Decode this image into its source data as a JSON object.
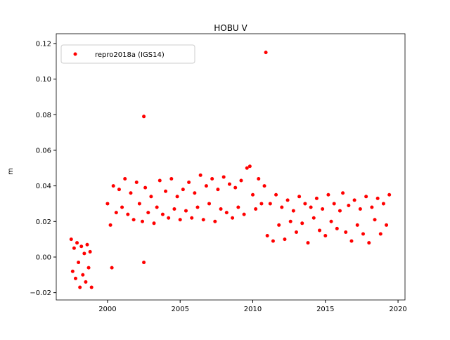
{
  "chart_data": {
    "type": "scatter",
    "title": "HOBU V",
    "y_label": "m",
    "legend": "upper left",
    "xlim": [
      1996.47,
      2020.48
    ],
    "ylim": [
      -0.0241,
      0.1255
    ],
    "xticks": [
      2000,
      2005,
      2010,
      2015,
      2020
    ],
    "yticks": [
      {
        "value": -0.02,
        "label": "−0.02"
      },
      {
        "value": 0,
        "label": "0.00"
      },
      0.02,
      0.04,
      0.06,
      0.08,
      {
        "value": 0.1,
        "label": "0.10"
      },
      0.12
    ],
    "series": [
      {
        "name": "repro2018a (IGS14)",
        "color": "#ff0000",
        "x": [
          1997.5,
          1997.6,
          1997.7,
          1997.8,
          1997.9,
          1998.0,
          1998.1,
          1998.2,
          1998.3,
          1998.4,
          1998.5,
          1998.6,
          1998.7,
          1998.8,
          1998.9,
          2000.0,
          2000.2,
          2000.4,
          2000.6,
          2000.8,
          2001.0,
          2001.2,
          2001.4,
          2001.6,
          2001.8,
          2002.0,
          2002.2,
          2002.4,
          2002.6,
          2002.8,
          2003.0,
          2003.2,
          2003.4,
          2003.6,
          2003.8,
          2004.0,
          2004.2,
          2004.4,
          2004.6,
          2004.8,
          2005.0,
          2005.2,
          2005.4,
          2005.6,
          2005.8,
          2006.0,
          2006.2,
          2006.4,
          2006.6,
          2006.8,
          2007.0,
          2007.2,
          2007.4,
          2007.6,
          2007.8,
          2008.0,
          2008.2,
          2008.4,
          2008.6,
          2008.8,
          2009.0,
          2009.2,
          2009.4,
          2009.6,
          2009.8,
          2010.0,
          2010.2,
          2010.4,
          2010.6,
          2010.8,
          2011.0,
          2011.2,
          2011.4,
          2011.6,
          2011.8,
          2012.0,
          2012.2,
          2012.4,
          2012.6,
          2012.8,
          2013.0,
          2013.2,
          2013.4,
          2013.6,
          2013.8,
          2014.0,
          2014.2,
          2014.4,
          2014.6,
          2014.8,
          2015.0,
          2015.2,
          2015.4,
          2015.6,
          2015.8,
          2016.0,
          2016.2,
          2016.4,
          2016.6,
          2016.8,
          2017.0,
          2017.2,
          2017.4,
          2017.6,
          2017.8,
          2018.0,
          2018.2,
          2018.4,
          2018.6,
          2018.8,
          2019.0,
          2019.2,
          2019.4,
          2000.3,
          2002.5,
          2002.5,
          2010.9
        ],
        "values": [
          0.01,
          -0.008,
          0.005,
          -0.012,
          0.008,
          -0.003,
          -0.017,
          0.006,
          -0.01,
          0.002,
          -0.014,
          0.007,
          -0.006,
          0.003,
          -0.017,
          0.03,
          0.018,
          0.04,
          0.025,
          0.038,
          0.028,
          0.044,
          0.024,
          0.036,
          0.021,
          0.042,
          0.03,
          0.02,
          0.039,
          0.025,
          0.034,
          0.019,
          0.028,
          0.043,
          0.024,
          0.037,
          0.022,
          0.044,
          0.027,
          0.034,
          0.021,
          0.038,
          0.026,
          0.042,
          0.022,
          0.036,
          0.028,
          0.046,
          0.021,
          0.04,
          0.03,
          0.044,
          0.02,
          0.038,
          0.027,
          0.045,
          0.025,
          0.041,
          0.022,
          0.039,
          0.028,
          0.043,
          0.024,
          0.05,
          0.051,
          0.035,
          0.027,
          0.044,
          0.03,
          0.04,
          0.012,
          0.03,
          0.009,
          0.035,
          0.018,
          0.028,
          0.01,
          0.032,
          0.02,
          0.026,
          0.014,
          0.034,
          0.019,
          0.03,
          0.008,
          0.028,
          0.022,
          0.033,
          0.015,
          0.027,
          0.012,
          0.035,
          0.02,
          0.03,
          0.016,
          0.026,
          0.036,
          0.014,
          0.029,
          0.009,
          0.032,
          0.018,
          0.027,
          0.013,
          0.034,
          0.008,
          0.028,
          0.021,
          0.033,
          0.013,
          0.03,
          0.018,
          0.035,
          -0.006,
          0.079,
          -0.003,
          0.115
        ]
      }
    ]
  }
}
